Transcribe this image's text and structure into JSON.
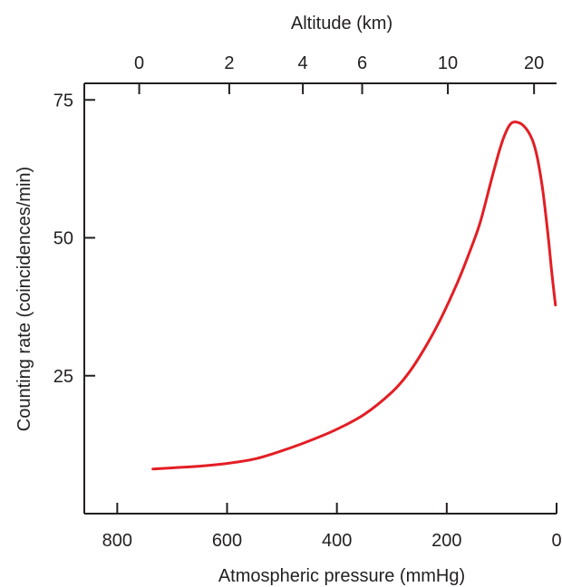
{
  "chart_data": {
    "type": "line",
    "title": "",
    "xlabel": "Atmospheric pressure (mmHg)",
    "ylabel": "Counting rate (coincidences/min)",
    "x2label": "Altitude (km)",
    "xlim": [
      860,
      0
    ],
    "ylim": [
      0,
      78
    ],
    "x_ticks": [
      800,
      600,
      400,
      200,
      0
    ],
    "y_ticks": [
      25,
      50,
      75
    ],
    "top_ticks": [
      {
        "label": "0",
        "pressure": 760
      },
      {
        "label": "2",
        "pressure": 596
      },
      {
        "label": "4",
        "pressure": 462
      },
      {
        "label": "6",
        "pressure": 354
      },
      {
        "label": "10",
        "pressure": 198
      },
      {
        "label": "20",
        "pressure": 41
      }
    ],
    "series": [
      {
        "color": "#e31e24",
        "x": [
          735,
          700,
          650,
          600,
          550,
          500,
          450,
          400,
          350,
          300,
          270,
          240,
          210,
          180,
          160,
          140,
          120,
          105,
          95,
          85,
          75,
          60,
          45,
          35,
          25,
          15,
          8,
          2
        ],
        "y": [
          8.1,
          8.3,
          8.6,
          9.1,
          9.9,
          11.4,
          13.2,
          15.3,
          18.0,
          22.0,
          25.4,
          30.0,
          35.5,
          42.0,
          47.0,
          52.5,
          60.0,
          65.5,
          68.5,
          70.5,
          71.0,
          70.3,
          68.0,
          64.5,
          58.5,
          50.0,
          43.0,
          37.8
        ]
      }
    ],
    "grid": false,
    "legend": "none"
  }
}
